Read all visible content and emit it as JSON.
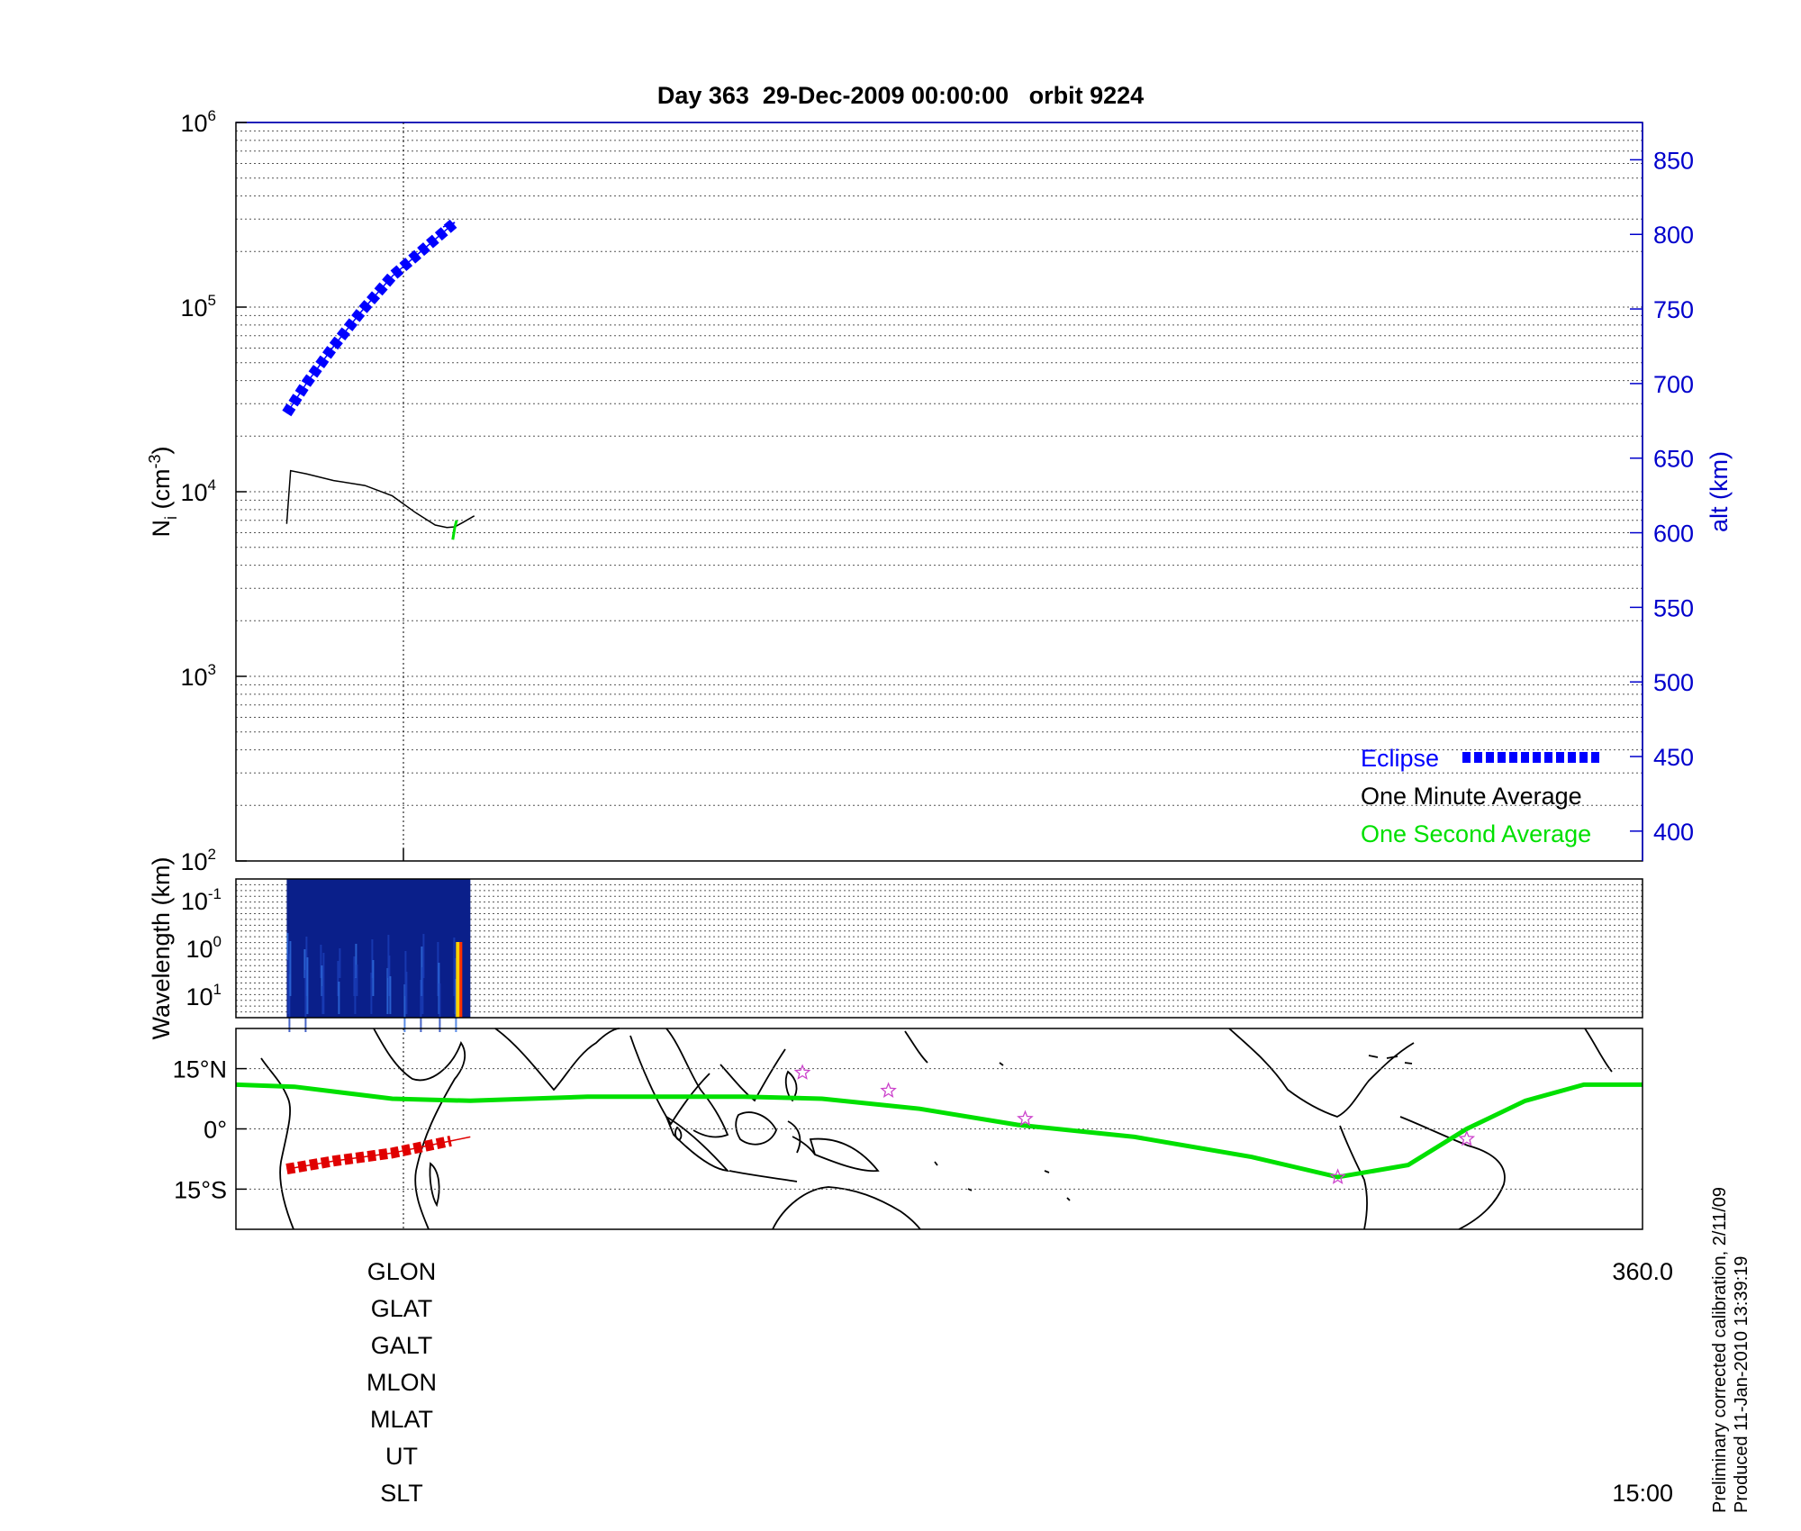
{
  "title": "Day 363  29-Dec-2009 00:00:00   orbit 9224",
  "colors": {
    "eclipse": "#0000ff",
    "one_minute": "#000000",
    "one_second": "#00e000",
    "track": "#00e000",
    "alt_axis": "#0000cc",
    "eclipse_track": "#e00000",
    "stars": "#cc44cc",
    "spectrogram_bg": "#0a1f8a"
  },
  "chart_data": [
    {
      "type": "line",
      "ylabel": "N_i (cm^-3)",
      "yscale": "log",
      "ylim": [
        100,
        1000000
      ],
      "yticks": [
        {
          "base": "10",
          "exp": "2"
        },
        {
          "base": "10",
          "exp": "3"
        },
        {
          "base": "10",
          "exp": "4"
        },
        {
          "base": "10",
          "exp": "5"
        },
        {
          "base": "10",
          "exp": "6"
        }
      ],
      "y2label": "alt (km)",
      "y2lim": [
        380,
        875
      ],
      "y2ticks": [
        "400",
        "450",
        "500",
        "550",
        "600",
        "650",
        "700",
        "750",
        "800",
        "850"
      ],
      "xlim": [
        0,
        360
      ],
      "series": [
        {
          "name": "Eclipse",
          "axis": "alt",
          "x": [
            13,
            18,
            25,
            32,
            40,
            48,
            56,
            53
          ],
          "y": [
            680,
            700,
            725,
            748,
            772,
            790,
            808,
            805
          ]
        },
        {
          "name": "One Minute Average",
          "axis": "ni",
          "x": [
            13,
            14,
            18,
            25,
            33,
            40,
            46,
            51,
            54,
            56,
            58,
            61
          ],
          "y": [
            6700,
            13000,
            12500,
            11500,
            10800,
            9500,
            7700,
            6600,
            6400,
            6450,
            6800,
            7400
          ]
        },
        {
          "name": "One Second Average",
          "axis": "ni",
          "x": [
            55.5,
            56,
            56.5
          ],
          "y": [
            5500,
            6400,
            7000
          ]
        }
      ],
      "legend": "bottom-right",
      "grid": true
    },
    {
      "type": "heatmap",
      "ylabel": "Wavelength (km)",
      "yticks": [
        {
          "base": "10",
          "exp": "-1"
        },
        {
          "base": "10",
          "exp": "0"
        },
        {
          "base": "10",
          "exp": "1"
        }
      ],
      "x_extent": [
        13,
        60
      ]
    },
    {
      "type": "line",
      "kind": "map",
      "yticks": [
        "15°N",
        "0°",
        "15°S"
      ],
      "ylim": [
        -25,
        25
      ],
      "xlim": [
        0,
        360
      ],
      "series": [
        {
          "name": "track",
          "x": [
            0,
            15,
            40,
            60,
            90,
            130,
            150,
            175,
            200,
            230,
            260,
            282,
            300,
            315,
            330,
            345,
            360
          ],
          "y": [
            11,
            10.5,
            7.5,
            7,
            8,
            8,
            7.5,
            5,
            1,
            -2,
            -7,
            -12,
            -9,
            0,
            7,
            11,
            11
          ]
        },
        {
          "name": "eclipse",
          "x": [
            13,
            25,
            40,
            55,
            60
          ],
          "y": [
            -10,
            -8,
            -6,
            -3,
            -2
          ]
        }
      ],
      "stars": [
        {
          "x": 145,
          "y": 14
        },
        {
          "x": 167,
          "y": 9.5
        },
        {
          "x": 202,
          "y": 2.5
        },
        {
          "x": 282,
          "y": -12
        },
        {
          "x": 315,
          "y": -2.5
        }
      ]
    }
  ],
  "legend": {
    "eclipse": "Eclipse",
    "one_minute": "One Minute Average",
    "one_second": "One Second Average"
  },
  "footer": {
    "labels": [
      "GLON",
      "GLAT",
      "GALT",
      "MLON",
      "MLAT",
      "UT",
      "SLT"
    ],
    "right_top": "360.0",
    "right_bottom": "15:00"
  },
  "notes": {
    "line1": "Preliminary corrected calibration, 2/11/09",
    "line2": "Produced 11-Jan-2010 13:39:19"
  }
}
